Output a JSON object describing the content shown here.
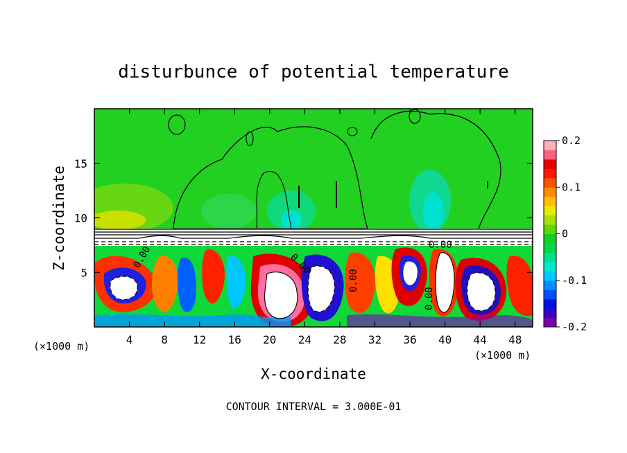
{
  "chart_data": {
    "type": "heatmap",
    "title": "disturbunce of potential temperature",
    "xlabel": "X-coordinate",
    "ylabel": "Z-coordinate",
    "x_unit_label": "(×1000 m)",
    "x_ticks": [
      4,
      8,
      12,
      16,
      20,
      24,
      28,
      32,
      36,
      40,
      44,
      48
    ],
    "y_ticks": [
      5,
      10,
      15
    ],
    "xlim": [
      0,
      50
    ],
    "ylim": [
      0,
      20
    ],
    "colorbar": {
      "range": [
        -0.2,
        0.2
      ],
      "ticks": [
        "0.2",
        "0.1",
        "0",
        "-0.1",
        "-0.2"
      ],
      "colors": [
        "#7a00a8",
        "#3a00c8",
        "#0010e0",
        "#0050ff",
        "#0090ff",
        "#00c8ff",
        "#00e8d0",
        "#00e090",
        "#00d848",
        "#10d020",
        "#60d800",
        "#a8e000",
        "#e8e800",
        "#ffc000",
        "#ff8c00",
        "#ff5000",
        "#ff1800",
        "#e80000",
        "#ff6080",
        "#ffb0b8"
      ]
    },
    "contour_labels": [
      "0.00",
      "0.00",
      "0.00",
      "0.00",
      "0.00"
    ],
    "contour_interval_label": "CONTOUR INTERVAL = 3.000E-01"
  }
}
